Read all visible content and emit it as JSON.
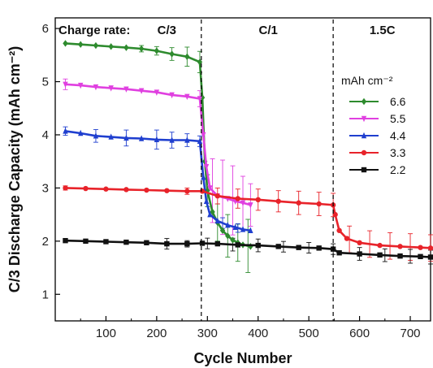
{
  "chart_data": {
    "type": "line",
    "title": "",
    "xlabel": "Cycle Number",
    "ylabel": "C/3 Discharge Capacity (mAh cm⁻²)",
    "xlim": [
      0,
      740
    ],
    "ylim": [
      0.5,
      6.2
    ],
    "xticks": [
      100,
      200,
      300,
      400,
      500,
      600,
      700
    ],
    "yticks": [
      1,
      2,
      3,
      4,
      5,
      6
    ],
    "grid": false,
    "legend": {
      "title": "mAh cm⁻²",
      "placement": "right"
    },
    "charge_rate_prefix": "Charge rate:",
    "charge_rates": [
      {
        "label": "C/3",
        "x_start": 0,
        "x_end": 288
      },
      {
        "label": "C/1",
        "x_start": 288,
        "x_end": 548
      },
      {
        "label": "1.5C",
        "x_start": 548,
        "x_end": 740
      }
    ],
    "dividers_x": [
      288,
      548
    ],
    "series": [
      {
        "name": "6.6",
        "color": "#2e8b2e",
        "marker": "diamond",
        "points": [
          [
            20,
            5.72
          ],
          [
            50,
            5.7
          ],
          [
            80,
            5.68
          ],
          [
            110,
            5.66
          ],
          [
            140,
            5.64
          ],
          [
            170,
            5.62
          ],
          [
            200,
            5.58
          ],
          [
            230,
            5.52
          ],
          [
            260,
            5.47
          ],
          [
            285,
            5.37
          ],
          [
            290,
            4.7
          ],
          [
            295,
            3.5
          ],
          [
            300,
            2.95
          ],
          [
            310,
            2.55
          ],
          [
            320,
            2.35
          ],
          [
            330,
            2.2
          ],
          [
            340,
            2.1
          ],
          [
            350,
            2.02
          ],
          [
            360,
            1.97
          ],
          [
            370,
            1.93
          ],
          [
            385,
            1.9
          ]
        ],
        "errors": [
          [
            170,
            0.06
          ],
          [
            200,
            0.08
          ],
          [
            230,
            0.12
          ],
          [
            260,
            0.18
          ],
          [
            285,
            0.2
          ],
          [
            300,
            0.3
          ],
          [
            320,
            0.35
          ],
          [
            340,
            0.4
          ],
          [
            360,
            0.35
          ],
          [
            380,
            0.5
          ]
        ]
      },
      {
        "name": "5.5",
        "color": "#e040e0",
        "marker": "triangle-down",
        "points": [
          [
            20,
            4.95
          ],
          [
            50,
            4.93
          ],
          [
            80,
            4.9
          ],
          [
            110,
            4.88
          ],
          [
            140,
            4.86
          ],
          [
            170,
            4.83
          ],
          [
            200,
            4.8
          ],
          [
            230,
            4.75
          ],
          [
            260,
            4.72
          ],
          [
            285,
            4.68
          ],
          [
            292,
            4.0
          ],
          [
            298,
            3.4
          ],
          [
            305,
            3.0
          ],
          [
            320,
            2.85
          ],
          [
            340,
            2.8
          ],
          [
            355,
            2.75
          ],
          [
            370,
            2.72
          ],
          [
            385,
            2.68
          ]
        ],
        "errors": [
          [
            20,
            0.1
          ],
          [
            285,
            0.15
          ],
          [
            310,
            0.6
          ],
          [
            330,
            0.7
          ],
          [
            350,
            0.65
          ],
          [
            370,
            0.5
          ],
          [
            385,
            0.4
          ]
        ]
      },
      {
        "name": "4.4",
        "color": "#1f3fcf",
        "marker": "triangle-up",
        "points": [
          [
            20,
            4.07
          ],
          [
            50,
            4.03
          ],
          [
            80,
            3.98
          ],
          [
            110,
            3.96
          ],
          [
            140,
            3.94
          ],
          [
            170,
            3.93
          ],
          [
            200,
            3.91
          ],
          [
            230,
            3.9
          ],
          [
            260,
            3.9
          ],
          [
            285,
            3.88
          ],
          [
            292,
            3.2
          ],
          [
            298,
            2.75
          ],
          [
            305,
            2.5
          ],
          [
            320,
            2.38
          ],
          [
            340,
            2.3
          ],
          [
            355,
            2.26
          ],
          [
            370,
            2.22
          ],
          [
            385,
            2.2
          ]
        ],
        "errors": [
          [
            20,
            0.08
          ],
          [
            80,
            0.12
          ],
          [
            140,
            0.15
          ],
          [
            200,
            0.18
          ],
          [
            230,
            0.15
          ],
          [
            260,
            0.12
          ],
          [
            285,
            0.1
          ],
          [
            330,
            0.1
          ],
          [
            360,
            0.08
          ]
        ]
      },
      {
        "name": "3.3",
        "color": "#e8232a",
        "marker": "circle",
        "points": [
          [
            20,
            3.0
          ],
          [
            60,
            2.99
          ],
          [
            100,
            2.98
          ],
          [
            140,
            2.97
          ],
          [
            180,
            2.96
          ],
          [
            220,
            2.95
          ],
          [
            260,
            2.94
          ],
          [
            290,
            2.94
          ],
          [
            320,
            2.85
          ],
          [
            360,
            2.8
          ],
          [
            400,
            2.78
          ],
          [
            440,
            2.75
          ],
          [
            480,
            2.72
          ],
          [
            520,
            2.7
          ],
          [
            548,
            2.68
          ],
          [
            552,
            2.5
          ],
          [
            560,
            2.2
          ],
          [
            575,
            2.05
          ],
          [
            600,
            1.97
          ],
          [
            640,
            1.92
          ],
          [
            680,
            1.9
          ],
          [
            720,
            1.88
          ],
          [
            740,
            1.87
          ]
        ],
        "errors": [
          [
            20,
            0.04
          ],
          [
            260,
            0.06
          ],
          [
            320,
            0.15
          ],
          [
            360,
            0.18
          ],
          [
            400,
            0.2
          ],
          [
            440,
            0.2
          ],
          [
            480,
            0.22
          ],
          [
            520,
            0.22
          ],
          [
            548,
            0.22
          ],
          [
            580,
            0.25
          ],
          [
            620,
            0.25
          ],
          [
            660,
            0.25
          ],
          [
            700,
            0.25
          ],
          [
            740,
            0.25
          ]
        ]
      },
      {
        "name": "2.2",
        "color": "#111111",
        "marker": "square",
        "points": [
          [
            20,
            2.01
          ],
          [
            60,
            2.0
          ],
          [
            100,
            1.99
          ],
          [
            140,
            1.98
          ],
          [
            180,
            1.97
          ],
          [
            220,
            1.95
          ],
          [
            260,
            1.95
          ],
          [
            290,
            1.96
          ],
          [
            320,
            1.95
          ],
          [
            360,
            1.93
          ],
          [
            400,
            1.92
          ],
          [
            440,
            1.9
          ],
          [
            480,
            1.88
          ],
          [
            520,
            1.87
          ],
          [
            548,
            1.85
          ],
          [
            560,
            1.78
          ],
          [
            600,
            1.76
          ],
          [
            640,
            1.74
          ],
          [
            680,
            1.72
          ],
          [
            720,
            1.71
          ],
          [
            740,
            1.7
          ]
        ],
        "errors": [
          [
            220,
            0.1
          ],
          [
            260,
            0.06
          ],
          [
            300,
            0.1
          ],
          [
            350,
            0.12
          ],
          [
            400,
            0.12
          ],
          [
            450,
            0.1
          ],
          [
            500,
            0.1
          ],
          [
            548,
            0.1
          ],
          [
            600,
            0.12
          ],
          [
            650,
            0.12
          ],
          [
            700,
            0.13
          ],
          [
            740,
            0.13
          ]
        ]
      }
    ]
  }
}
